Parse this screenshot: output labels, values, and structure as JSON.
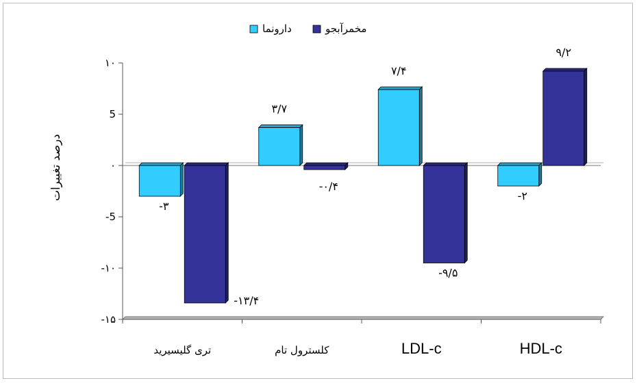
{
  "chart_data": {
    "type": "bar",
    "categories": [
      "ترى گليسيريد",
      "كلسترول تام",
      "LDL-c",
      "HDL-c"
    ],
    "series": [
      {
        "name": "دارونما",
        "color": "#33ccff",
        "values": [
          -3,
          3.7,
          7.4,
          -2
        ],
        "labels": [
          "-۳",
          "۳/۷",
          "۷/۴",
          "-۲"
        ]
      },
      {
        "name": "مخمرآبجو",
        "color": "#333399",
        "values": [
          -13.4,
          -0.4,
          -9.5,
          9.2
        ],
        "labels": [
          "-۱۳/۴",
          "-۰/۴",
          "-۹/۵",
          "۹/۲"
        ]
      }
    ],
    "ylabel": "درصد تغييرات",
    "ylim": [
      -15,
      10
    ],
    "yticks": [
      10,
      5,
      0,
      -5,
      -10,
      -15
    ],
    "ytick_labels": [
      "۱۰",
      "5",
      "۰",
      "-5",
      "-۱۰",
      "-۱۵"
    ],
    "legend_position": "top",
    "grid": false
  }
}
